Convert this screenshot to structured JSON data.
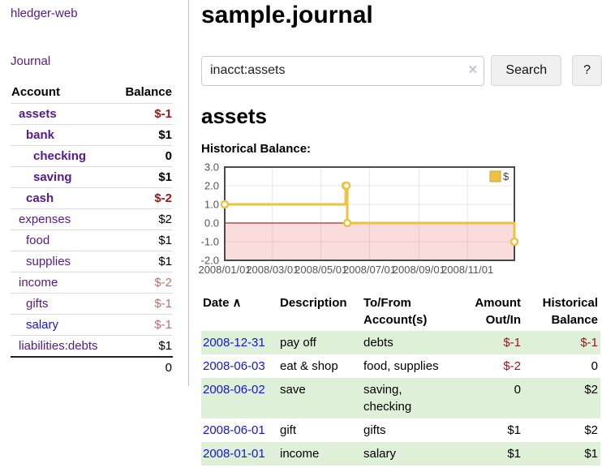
{
  "app": {
    "brand": "hledger-web",
    "nav": {
      "journal": "Journal"
    }
  },
  "colors": {
    "link_purple": "#551a8b",
    "link_blue": "#1414dd",
    "negative": "#9a1616",
    "negative_dim": "#bd6f6f",
    "stripe_green": "#dff0d8",
    "series_yellow": "#edc240",
    "negative_region_pink": "#fbdcdc",
    "zero_line_red": "#8b0000"
  },
  "sidebar": {
    "header": {
      "account": "Account",
      "balance": "Balance"
    },
    "rows": [
      {
        "name": "assets",
        "balance": "$-1"
      },
      {
        "name": "bank",
        "balance": "$1"
      },
      {
        "name": "checking",
        "balance": "0"
      },
      {
        "name": "saving",
        "balance": "$1"
      },
      {
        "name": "cash",
        "balance": "$-2"
      },
      {
        "name": "expenses",
        "balance": "$2"
      },
      {
        "name": "food",
        "balance": "$1"
      },
      {
        "name": "supplies",
        "balance": "$1"
      },
      {
        "name": "income",
        "balance": "$-2"
      },
      {
        "name": "gifts",
        "balance": "$-1"
      },
      {
        "name": "salary",
        "balance": "$-1"
      },
      {
        "name": "liabilities:debts",
        "balance": "$1"
      }
    ],
    "total": "0"
  },
  "header": {
    "title": "sample.journal"
  },
  "search": {
    "value": "inacct:assets",
    "clear_icon": "×",
    "button_label": "Search",
    "help_label": "?"
  },
  "account_page": {
    "heading": "assets",
    "chart_label": "Historical Balance:"
  },
  "chart_data": {
    "type": "line",
    "title": "Historical Balance",
    "step": true,
    "grid": true,
    "legend_position": "top-right",
    "ylim": [
      -2,
      3
    ],
    "xlim_days": [
      0,
      364
    ],
    "y_ticks": [
      "3.0",
      "2.0",
      "1.0",
      "0.0",
      "-1.0",
      "-2.0"
    ],
    "y_tick_values": [
      3,
      2,
      1,
      0,
      -1,
      -2
    ],
    "x_ticks": [
      {
        "day": 0,
        "label": "2008/01/01"
      },
      {
        "day": 60,
        "label": "2008/03/01"
      },
      {
        "day": 121,
        "label": "2008/05/01"
      },
      {
        "day": 182,
        "label": "2008/07/01"
      },
      {
        "day": 244,
        "label": "2008/09/01"
      },
      {
        "day": 305,
        "label": "2008/11/01"
      }
    ],
    "series": [
      {
        "name": "$",
        "color": "#edc240",
        "points": [
          {
            "date": "2008-01-01",
            "day": 0,
            "value": 1
          },
          {
            "date": "2008-06-01",
            "day": 152,
            "value": 2
          },
          {
            "date": "2008-06-02",
            "day": 153,
            "value": 2
          },
          {
            "date": "2008-06-03",
            "day": 154,
            "value": 0
          },
          {
            "date": "2008-12-31",
            "day": 364,
            "value": -1
          }
        ]
      }
    ],
    "negative_region_fill": "#fbdcdc",
    "zero_line_color": "#8b0000"
  },
  "register": {
    "columns": [
      {
        "label": "Date",
        "sort": "∧"
      },
      {
        "label": "Description"
      },
      {
        "label": "To/From Account(s)"
      },
      {
        "label": "Amount Out/In"
      },
      {
        "label": "Historical Balance"
      }
    ],
    "rows": [
      {
        "date": "2008-12-31",
        "description": "pay off",
        "accounts": "debts",
        "amount": "$-1",
        "balance": "$-1"
      },
      {
        "date": "2008-06-03",
        "description": "eat & shop",
        "accounts": "food, supplies",
        "amount": "$-2",
        "balance": "0"
      },
      {
        "date": "2008-06-02",
        "description": "save",
        "accounts": "saving, checking",
        "amount": "0",
        "balance": "$2"
      },
      {
        "date": "2008-06-01",
        "description": "gift",
        "accounts": "gifts",
        "amount": "$1",
        "balance": "$2"
      },
      {
        "date": "2008-01-01",
        "description": "income",
        "accounts": "salary",
        "amount": "$1",
        "balance": "$1"
      }
    ]
  }
}
